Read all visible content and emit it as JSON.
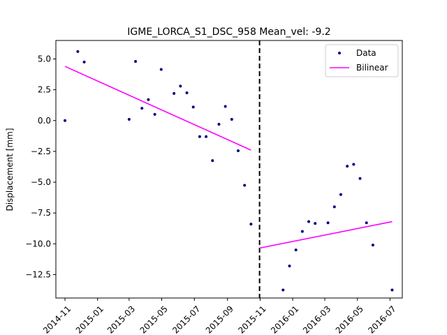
{
  "chart_data": {
    "type": "scatter",
    "title": "IGME_LORCA_S1_DSC_958    Mean_vel: -9.2",
    "xlabel": "",
    "ylabel": "Displacement [mm]",
    "x_ticks": [
      "2014-11",
      "2015-01",
      "2015-03",
      "2015-05",
      "2015-07",
      "2015-09",
      "2015-11",
      "2016-01",
      "2016-03",
      "2016-05",
      "2016-07"
    ],
    "y_ticks": [
      5.0,
      2.5,
      0.0,
      -2.5,
      -5.0,
      -7.5,
      -10.0,
      -12.5
    ],
    "y_tick_labels": [
      "5.0",
      "2.5",
      "0.0",
      "−2.5",
      "−5.0",
      "−7.5",
      "−10.0",
      "−12.5"
    ],
    "xlim": [
      "2014-10-15",
      "2016-07-24"
    ],
    "ylim": [
      -14.4,
      6.5
    ],
    "grid": false,
    "legend_position": "top-right",
    "breakpoint": "2015-10-31",
    "colors": {
      "data": "#00007f",
      "fit": "#ff00ff",
      "breakpoint": "#000000"
    },
    "series": [
      {
        "name": "Data",
        "kind": "points",
        "points": [
          {
            "x": "2014-11-01",
            "y": 0.0
          },
          {
            "x": "2014-11-25",
            "y": 5.6
          },
          {
            "x": "2014-12-07",
            "y": 4.75
          },
          {
            "x": "2015-03-01",
            "y": 0.1
          },
          {
            "x": "2015-03-13",
            "y": 4.8
          },
          {
            "x": "2015-03-25",
            "y": 1.0
          },
          {
            "x": "2015-04-06",
            "y": 1.7
          },
          {
            "x": "2015-04-18",
            "y": 0.5
          },
          {
            "x": "2015-04-30",
            "y": 4.15
          },
          {
            "x": "2015-05-24",
            "y": 2.2
          },
          {
            "x": "2015-06-05",
            "y": 2.8
          },
          {
            "x": "2015-06-17",
            "y": 2.25
          },
          {
            "x": "2015-06-29",
            "y": 1.1
          },
          {
            "x": "2015-07-11",
            "y": -1.3
          },
          {
            "x": "2015-07-23",
            "y": -1.3
          },
          {
            "x": "2015-08-04",
            "y": -3.25
          },
          {
            "x": "2015-08-16",
            "y": -0.3
          },
          {
            "x": "2015-08-28",
            "y": 1.15
          },
          {
            "x": "2015-09-09",
            "y": 0.1
          },
          {
            "x": "2015-09-21",
            "y": -2.45
          },
          {
            "x": "2015-10-03",
            "y": -5.25
          },
          {
            "x": "2015-10-15",
            "y": -8.4
          },
          {
            "x": "2015-12-14",
            "y": -13.75
          },
          {
            "x": "2015-12-26",
            "y": -11.8
          },
          {
            "x": "2016-01-07",
            "y": -10.5
          },
          {
            "x": "2016-01-19",
            "y": -9.0
          },
          {
            "x": "2016-01-31",
            "y": -8.2
          },
          {
            "x": "2016-02-12",
            "y": -8.35
          },
          {
            "x": "2016-03-07",
            "y": -8.3
          },
          {
            "x": "2016-03-19",
            "y": -7.0
          },
          {
            "x": "2016-03-31",
            "y": -6.0
          },
          {
            "x": "2016-04-12",
            "y": -3.7
          },
          {
            "x": "2016-04-24",
            "y": -3.55
          },
          {
            "x": "2016-05-06",
            "y": -4.7
          },
          {
            "x": "2016-05-18",
            "y": -8.3
          },
          {
            "x": "2016-05-30",
            "y": -10.1
          },
          {
            "x": "2016-07-05",
            "y": -13.75
          }
        ]
      },
      {
        "name": "Bilinear",
        "kind": "line",
        "segments": [
          [
            {
              "x": "2014-11-01",
              "y": 4.4
            },
            {
              "x": "2015-10-15",
              "y": -2.4
            }
          ],
          [
            {
              "x": "2015-10-31",
              "y": -10.35
            },
            {
              "x": "2016-07-05",
              "y": -8.2
            }
          ]
        ]
      }
    ]
  }
}
